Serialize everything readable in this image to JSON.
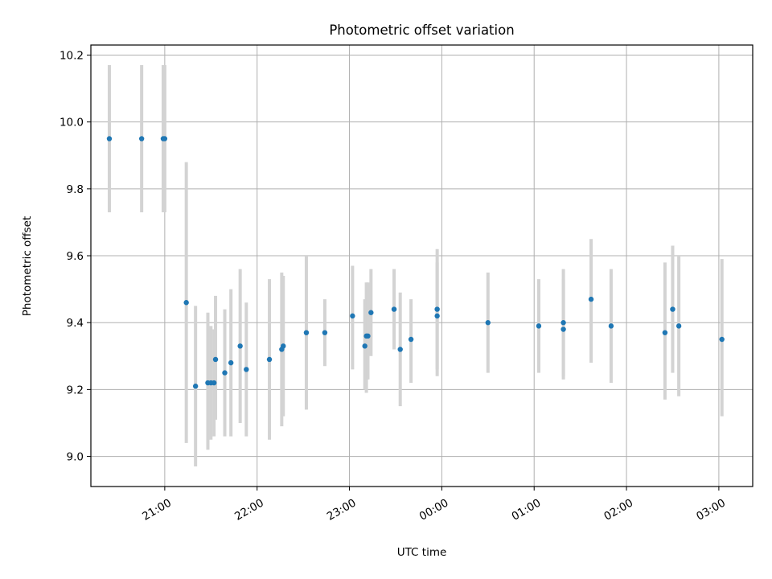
{
  "chart_data": {
    "type": "scatter",
    "title": "Photometric offset variation",
    "xlabel": "UTC time",
    "ylabel": "Photometric offset",
    "grid": true,
    "xlim": [
      "20:12",
      "03:22"
    ],
    "ylim": [
      8.91,
      10.23
    ],
    "xticks": [
      "21:00",
      "22:00",
      "23:00",
      "00:00",
      "01:00",
      "02:00",
      "03:00"
    ],
    "yticks": [
      "9.0",
      "9.2",
      "9.4",
      "9.6",
      "9.8",
      "10.0",
      "10.2"
    ],
    "marker_color": "#1f77b4",
    "errorbar_color": "#d3d3d3",
    "series": [
      {
        "points": [
          {
            "x": "20:24",
            "y": 9.95,
            "low": 9.73,
            "high": 10.17
          },
          {
            "x": "20:45",
            "y": 9.95,
            "low": 9.73,
            "high": 10.17
          },
          {
            "x": "20:59",
            "y": 9.95,
            "low": 9.73,
            "high": 10.17
          },
          {
            "x": "21:00",
            "y": 9.95,
            "low": 9.73,
            "high": 10.17
          },
          {
            "x": "21:14",
            "y": 9.46,
            "low": 9.04,
            "high": 9.88
          },
          {
            "x": "21:20",
            "y": 9.21,
            "low": 8.97,
            "high": 9.45
          },
          {
            "x": "21:28",
            "y": 9.22,
            "low": 9.02,
            "high": 9.43
          },
          {
            "x": "21:30",
            "y": 9.22,
            "low": 9.05,
            "high": 9.39
          },
          {
            "x": "21:32",
            "y": 9.22,
            "low": 9.06,
            "high": 9.38
          },
          {
            "x": "21:33",
            "y": 9.29,
            "low": 9.11,
            "high": 9.48
          },
          {
            "x": "21:39",
            "y": 9.25,
            "low": 9.06,
            "high": 9.44
          },
          {
            "x": "21:43",
            "y": 9.28,
            "low": 9.06,
            "high": 9.5
          },
          {
            "x": "21:49",
            "y": 9.33,
            "low": 9.1,
            "high": 9.56
          },
          {
            "x": "21:53",
            "y": 9.26,
            "low": 9.06,
            "high": 9.46
          },
          {
            "x": "22:08",
            "y": 9.29,
            "low": 9.05,
            "high": 9.53
          },
          {
            "x": "22:16",
            "y": 9.32,
            "low": 9.09,
            "high": 9.55
          },
          {
            "x": "22:17",
            "y": 9.33,
            "low": 9.12,
            "high": 9.54
          },
          {
            "x": "22:32",
            "y": 9.37,
            "low": 9.14,
            "high": 9.6
          },
          {
            "x": "22:44",
            "y": 9.37,
            "low": 9.27,
            "high": 9.47
          },
          {
            "x": "23:02",
            "y": 9.42,
            "low": 9.26,
            "high": 9.57
          },
          {
            "x": "23:10",
            "y": 9.33,
            "low": 9.2,
            "high": 9.47
          },
          {
            "x": "23:11",
            "y": 9.36,
            "low": 9.19,
            "high": 9.52
          },
          {
            "x": "23:12",
            "y": 9.36,
            "low": 9.23,
            "high": 9.52
          },
          {
            "x": "23:14",
            "y": 9.43,
            "low": 9.3,
            "high": 9.56
          },
          {
            "x": "23:29",
            "y": 9.44,
            "low": 9.32,
            "high": 9.56
          },
          {
            "x": "23:33",
            "y": 9.32,
            "low": 9.15,
            "high": 9.49
          },
          {
            "x": "23:40",
            "y": 9.35,
            "low": 9.22,
            "high": 9.47
          },
          {
            "x": "23:57",
            "y": 9.42,
            "low": 9.26,
            "high": 9.58
          },
          {
            "x": "23:57",
            "y": 9.44,
            "low": 9.24,
            "high": 9.62
          },
          {
            "x": "00:30",
            "y": 9.4,
            "low": 9.25,
            "high": 9.55
          },
          {
            "x": "01:03",
            "y": 9.39,
            "low": 9.25,
            "high": 9.53
          },
          {
            "x": "01:19",
            "y": 9.38,
            "low": 9.23,
            "high": 9.53
          },
          {
            "x": "01:19",
            "y": 9.4,
            "low": 9.24,
            "high": 9.56
          },
          {
            "x": "01:37",
            "y": 9.47,
            "low": 9.28,
            "high": 9.65
          },
          {
            "x": "01:50",
            "y": 9.39,
            "low": 9.22,
            "high": 9.56
          },
          {
            "x": "02:25",
            "y": 9.37,
            "low": 9.17,
            "high": 9.58
          },
          {
            "x": "02:30",
            "y": 9.44,
            "low": 9.25,
            "high": 9.63
          },
          {
            "x": "02:34",
            "y": 9.39,
            "low": 9.18,
            "high": 9.6
          },
          {
            "x": "03:02",
            "y": 9.35,
            "low": 9.12,
            "high": 9.59
          }
        ]
      }
    ]
  }
}
